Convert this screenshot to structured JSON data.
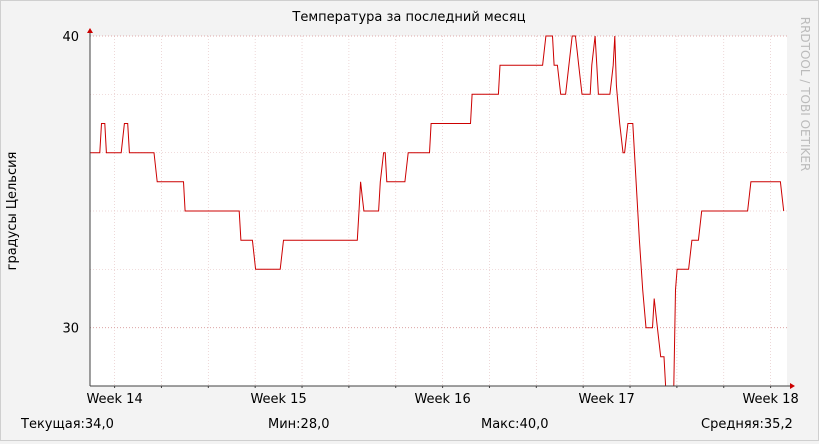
{
  "chart_data": {
    "type": "line",
    "title": "Температура за последний месяц",
    "ylabel": "градусы Цельсия",
    "watermark": "RRDTOOL / TOBI OETIKER",
    "ylim": [
      28,
      40
    ],
    "y_ticks": [
      30,
      40
    ],
    "x_ticks": [
      "Week 14",
      "Week 15",
      "Week 16",
      "Week 17",
      "Week 18"
    ],
    "xlim_weeks": [
      13.85,
      18.1
    ],
    "series": [
      {
        "color": "#cc0000",
        "points": [
          [
            13.85,
            36
          ],
          [
            13.91,
            36
          ],
          [
            13.92,
            37
          ],
          [
            13.94,
            37
          ],
          [
            13.95,
            36
          ],
          [
            14.04,
            36
          ],
          [
            14.05,
            36.5
          ],
          [
            14.06,
            37
          ],
          [
            14.08,
            37
          ],
          [
            14.09,
            36
          ],
          [
            14.24,
            36
          ],
          [
            14.26,
            35
          ],
          [
            14.42,
            35
          ],
          [
            14.43,
            34
          ],
          [
            14.76,
            34
          ],
          [
            14.77,
            33
          ],
          [
            14.84,
            33
          ],
          [
            14.86,
            32
          ],
          [
            15.01,
            32
          ],
          [
            15.03,
            33
          ],
          [
            15.48,
            33
          ],
          [
            15.49,
            34
          ],
          [
            15.5,
            35
          ],
          [
            15.51,
            34.5
          ],
          [
            15.52,
            34
          ],
          [
            15.61,
            34
          ],
          [
            15.62,
            35
          ],
          [
            15.64,
            36
          ],
          [
            15.65,
            36
          ],
          [
            15.66,
            35
          ],
          [
            15.77,
            35
          ],
          [
            15.79,
            36
          ],
          [
            15.92,
            36
          ],
          [
            15.93,
            37
          ],
          [
            16.17,
            37
          ],
          [
            16.18,
            38
          ],
          [
            16.34,
            38
          ],
          [
            16.35,
            39
          ],
          [
            16.61,
            39
          ],
          [
            16.63,
            40
          ],
          [
            16.67,
            40
          ],
          [
            16.68,
            39
          ],
          [
            16.7,
            39
          ],
          [
            16.72,
            38
          ],
          [
            16.75,
            38
          ],
          [
            16.77,
            39
          ],
          [
            16.79,
            40
          ],
          [
            16.81,
            40
          ],
          [
            16.82,
            39.5
          ],
          [
            16.83,
            39
          ],
          [
            16.85,
            38
          ],
          [
            16.9,
            38
          ],
          [
            16.91,
            39
          ],
          [
            16.93,
            40
          ],
          [
            16.94,
            39
          ],
          [
            16.95,
            38
          ],
          [
            17.02,
            38
          ],
          [
            17.04,
            39
          ],
          [
            17.05,
            40
          ],
          [
            17.06,
            38.3
          ],
          [
            17.08,
            37
          ],
          [
            17.1,
            36
          ],
          [
            17.11,
            36
          ],
          [
            17.13,
            37
          ],
          [
            17.16,
            37
          ],
          [
            17.18,
            35
          ],
          [
            17.2,
            33
          ],
          [
            17.22,
            31.3
          ],
          [
            17.24,
            30
          ],
          [
            17.28,
            30
          ],
          [
            17.29,
            31
          ],
          [
            17.31,
            30
          ],
          [
            17.33,
            29
          ],
          [
            17.35,
            29
          ],
          [
            17.36,
            28
          ],
          [
            17.41,
            28
          ],
          [
            17.42,
            31.3
          ],
          [
            17.43,
            32
          ],
          [
            17.5,
            32
          ],
          [
            17.52,
            33
          ],
          [
            17.56,
            33
          ],
          [
            17.58,
            34
          ],
          [
            17.86,
            34
          ],
          [
            17.88,
            35
          ],
          [
            18.06,
            35
          ],
          [
            18.08,
            34
          ]
        ]
      }
    ]
  },
  "summary": [
    {
      "label": "Текущая:",
      "value": "34,0"
    },
    {
      "label": "Мин:",
      "value": "28,0"
    },
    {
      "label": "Макс:",
      "value": "40,0"
    },
    {
      "label": "Средняя:",
      "value": "35,2"
    }
  ]
}
